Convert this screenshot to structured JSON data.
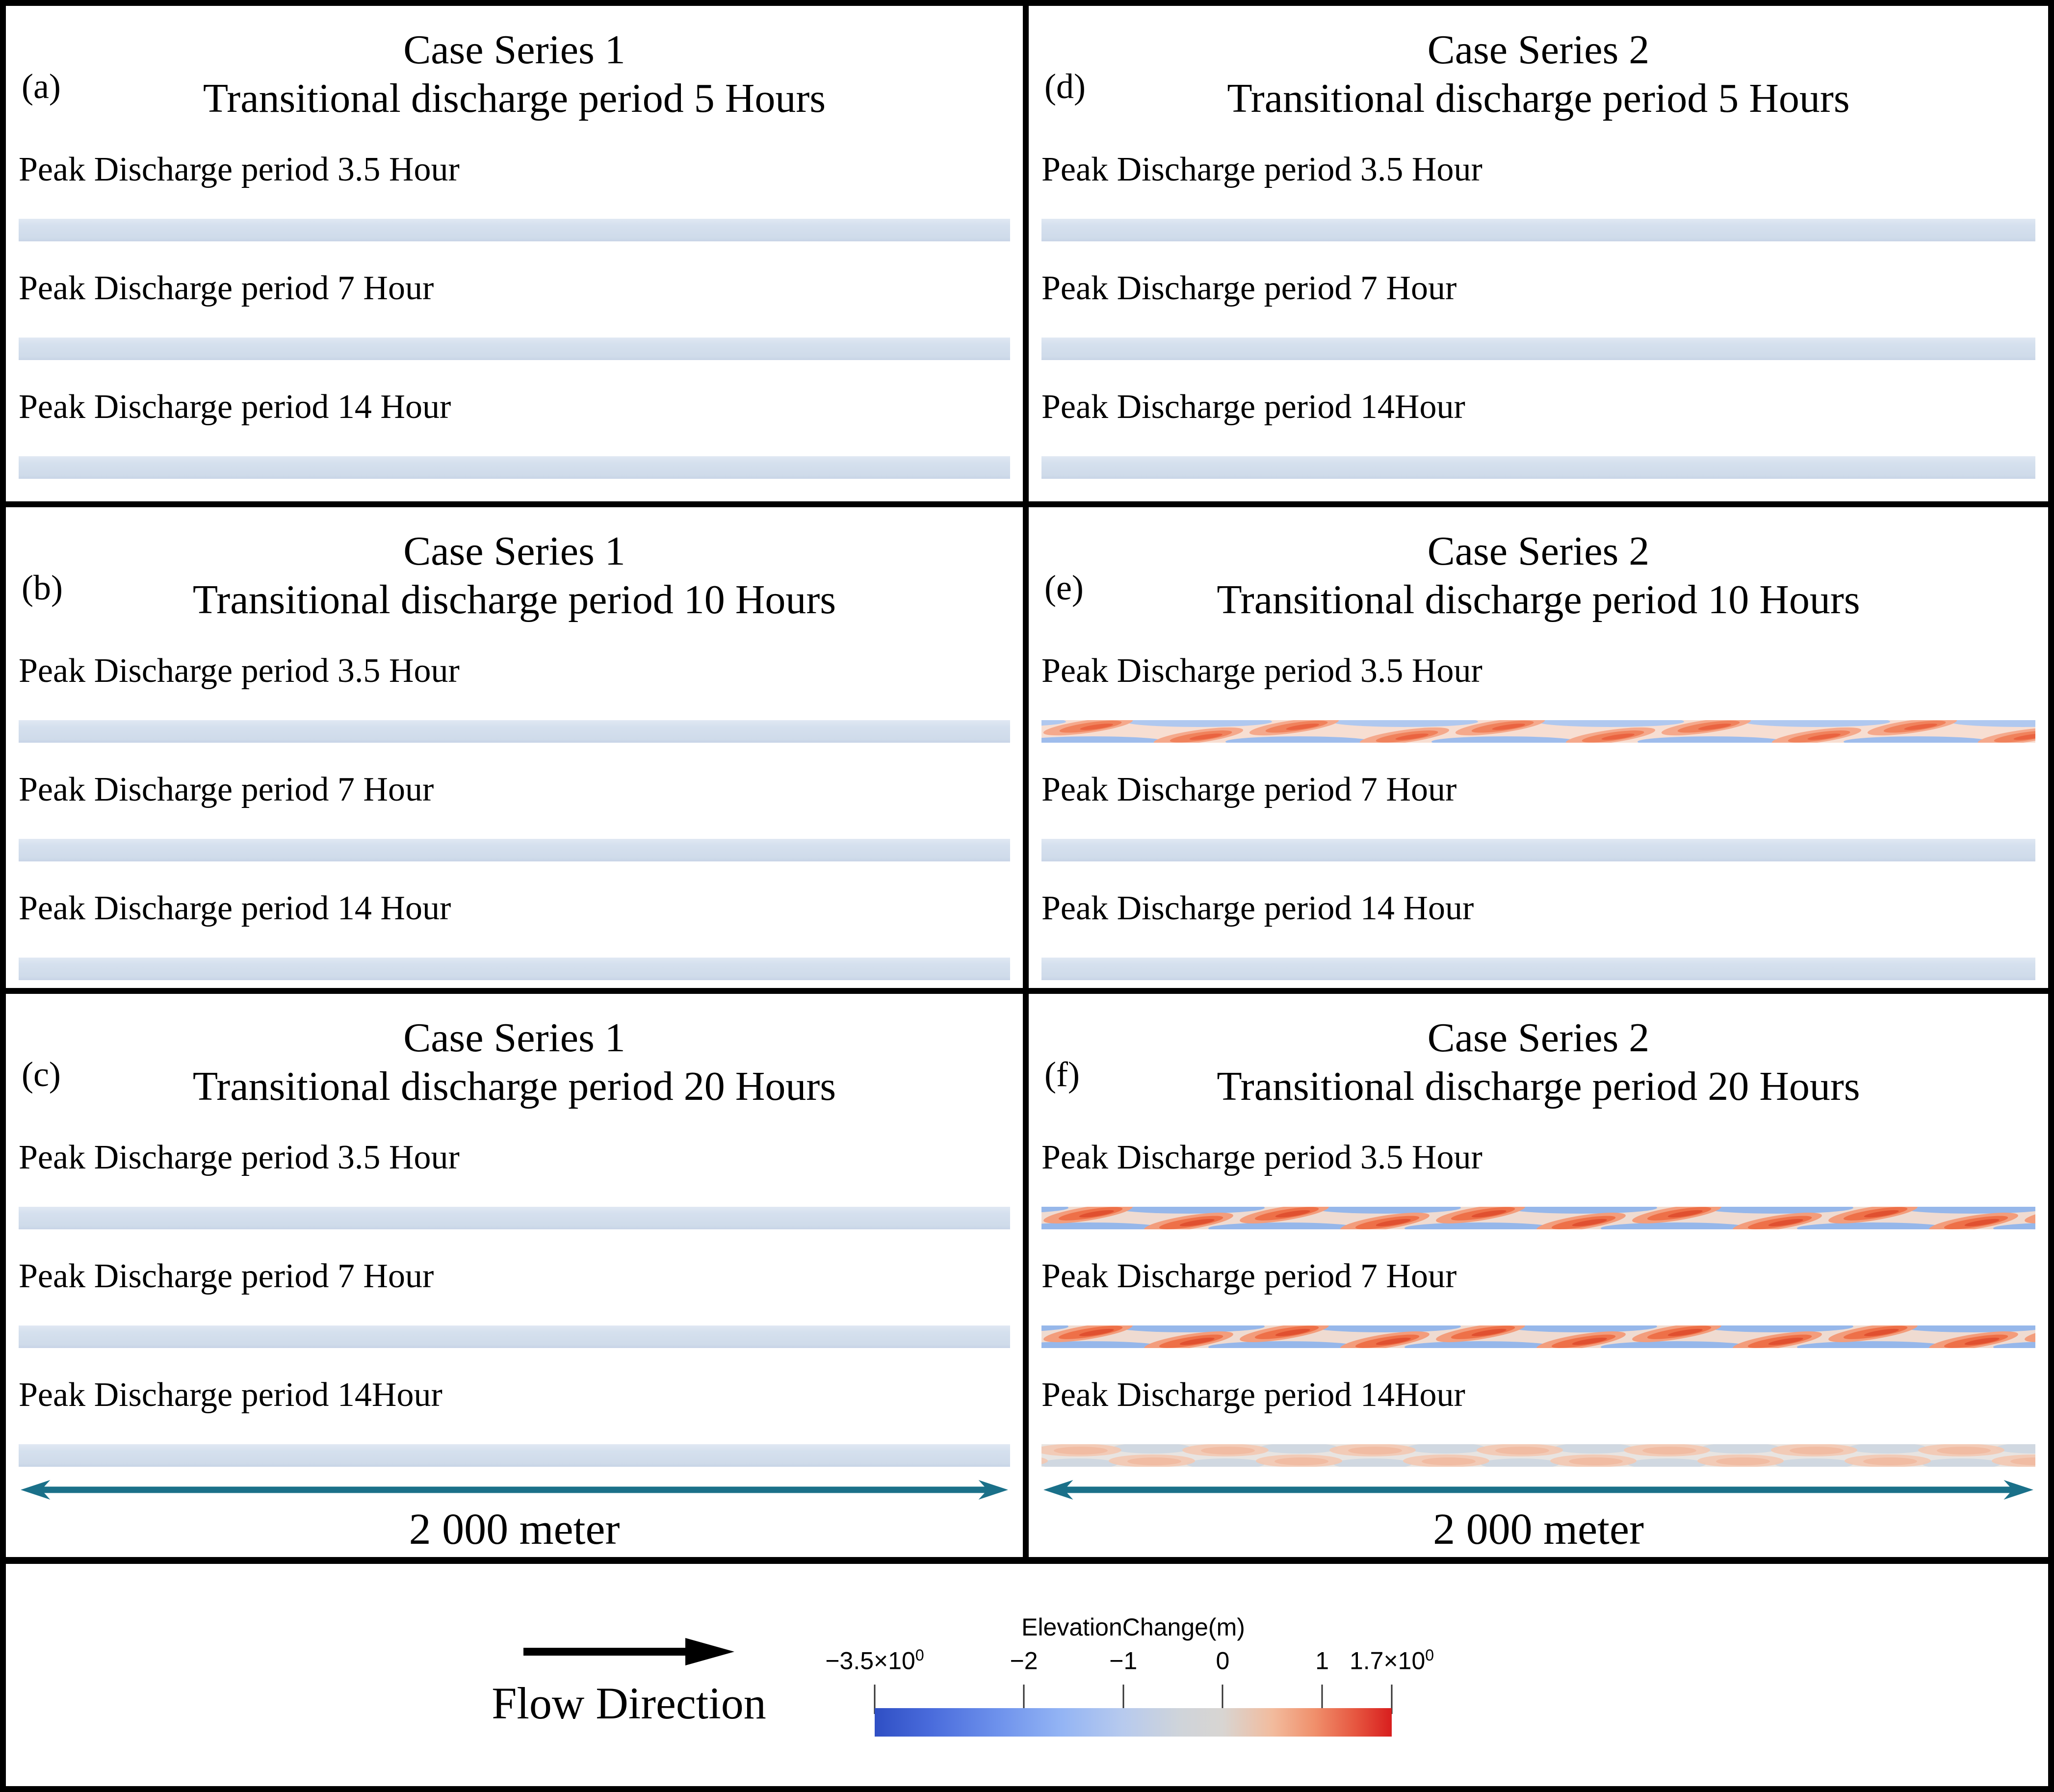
{
  "figure": {
    "panels": [
      {
        "id": "a",
        "letter": "(a)",
        "series": "Case Series 1",
        "transition": "Transitional discharge period 5 Hours",
        "rows": [
          {
            "label": "Peak Discharge period 3.5 Hour",
            "strip": "plain"
          },
          {
            "label": "Peak Discharge period 7 Hour",
            "strip": "plain"
          },
          {
            "label": "Peak Discharge period 14 Hour",
            "strip": "plain"
          }
        ]
      },
      {
        "id": "d",
        "letter": "(d)",
        "series": "Case Series 2",
        "transition": "Transitional discharge period 5 Hours",
        "rows": [
          {
            "label": "Peak Discharge period 3.5 Hour",
            "strip": "plain"
          },
          {
            "label": "Peak Discharge period 7 Hour",
            "strip": "plain"
          },
          {
            "label": "Peak Discharge period 14Hour",
            "strip": "plain"
          }
        ]
      },
      {
        "id": "b",
        "letter": "(b)",
        "series": "Case Series 1",
        "transition": "Transitional discharge period 10 Hours",
        "rows": [
          {
            "label": "Peak Discharge period 3.5 Hour",
            "strip": "plain"
          },
          {
            "label": "Peak Discharge period 7 Hour",
            "strip": "plain"
          },
          {
            "label": "Peak Discharge period 14 Hour",
            "strip": "plain"
          }
        ]
      },
      {
        "id": "e",
        "letter": "(e)",
        "series": "Case Series 2",
        "transition": "Transitional discharge period 10 Hours",
        "rows": [
          {
            "label": "Peak Discharge period 3.5 Hour",
            "strip": "medium"
          },
          {
            "label": "Peak Discharge period 7 Hour",
            "strip": "plain"
          },
          {
            "label": "Peak Discharge period 14 Hour",
            "strip": "plain"
          }
        ]
      },
      {
        "id": "c",
        "letter": "(c)",
        "series": "Case Series 1",
        "transition": "Transitional discharge period 20 Hours",
        "rows": [
          {
            "label": "Peak Discharge period 3.5 Hour",
            "strip": "plain"
          },
          {
            "label": "Peak Discharge period 7 Hour",
            "strip": "plain"
          },
          {
            "label": "Peak Discharge period 14Hour",
            "strip": "plain"
          }
        ],
        "scale": "2 000 meter"
      },
      {
        "id": "f",
        "letter": "(f)",
        "series": "Case Series 2",
        "transition": "Transitional discharge period 20 Hours",
        "rows": [
          {
            "label": "Peak Discharge period 3.5 Hour",
            "strip": "strong"
          },
          {
            "label": "Peak Discharge period 7 Hour",
            "strip": "strong"
          },
          {
            "label": "Peak Discharge period 14Hour",
            "strip": "faint"
          }
        ],
        "scale": "2 000 meter"
      }
    ],
    "legend": {
      "flow_label": "Flow Direction",
      "colorbar": {
        "title": "ElevationChange(m)",
        "range": [
          -3.5,
          1.7
        ],
        "ticks": [
          {
            "label": "−3.5×10",
            "sup": "0",
            "value": -3.5,
            "pos": 0
          },
          {
            "label": "−2",
            "sup": "",
            "value": -2,
            "pos": 28.85
          },
          {
            "label": "−1",
            "sup": "",
            "value": -1,
            "pos": 48.08
          },
          {
            "label": "0",
            "sup": "",
            "value": 0,
            "pos": 67.31
          },
          {
            "label": "1",
            "sup": "",
            "value": 1,
            "pos": 86.54
          },
          {
            "label": "1.7×10",
            "sup": "0",
            "value": 1.7,
            "pos": 100
          }
        ],
        "colors": {
          "min": "#2f4fc4",
          "zero": "#d8d5d2",
          "max": "#d81e1e"
        }
      }
    },
    "colors": {
      "strip_plain": "#d2deec",
      "pattern_red": "#ee7048",
      "pattern_blue": "#8db4ee",
      "pattern_faint_red": "#f3c9b3",
      "pattern_faint_blue": "#ced7e1",
      "scale_arrow": "#1a7089",
      "flow_arrow": "#000000",
      "border": "#000000"
    }
  }
}
